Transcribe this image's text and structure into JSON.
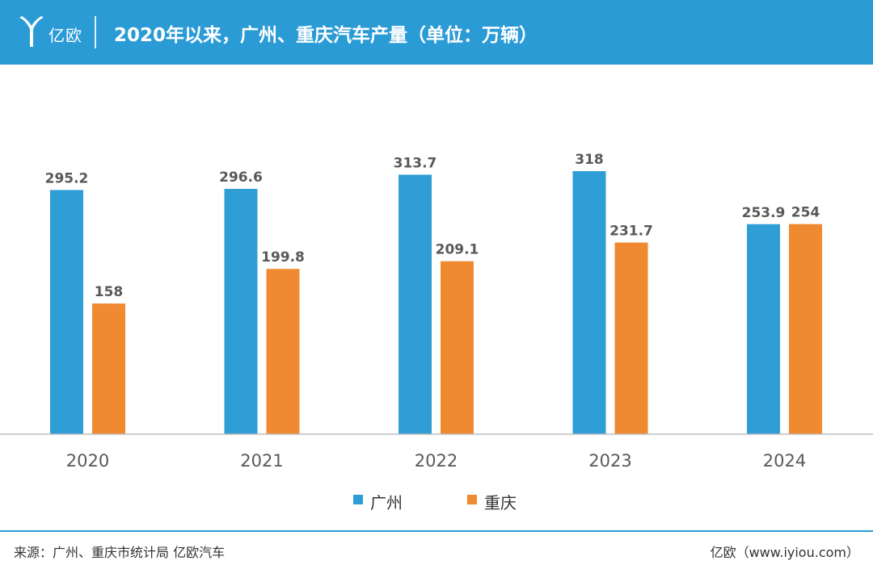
{
  "header": {
    "brand": "亿欧",
    "title": "2020年以来，广州、重庆汽车产量（单位：万辆）"
  },
  "colors": {
    "header_bg": "#2b9bd6",
    "series_guangzhou": "#2f9ed7",
    "series_chongqing": "#f08a30"
  },
  "chart_data": {
    "type": "bar",
    "title": "2020年以来，广州、重庆汽车产量（单位：万辆）",
    "categories": [
      "2020",
      "2021",
      "2022",
      "2023",
      "2024"
    ],
    "series": [
      {
        "name": "广州",
        "values": [
          295.2,
          296.6,
          313.7,
          318,
          253.9
        ],
        "labels": [
          "295.2",
          "296.6",
          "313.7",
          "318",
          "253.9"
        ]
      },
      {
        "name": "重庆",
        "values": [
          158,
          199.8,
          209.1,
          231.7,
          254
        ],
        "labels": [
          "158",
          "199.8",
          "209.1",
          "231.7",
          "254"
        ]
      }
    ],
    "xlabel": "",
    "ylabel": "",
    "ylim": [
      0,
      380
    ],
    "grid": false,
    "legend_position": "bottom"
  },
  "footer": {
    "source": "来源：广州、重庆市统计局 亿欧汽车",
    "site": "亿欧（www.iyiou.com）"
  }
}
